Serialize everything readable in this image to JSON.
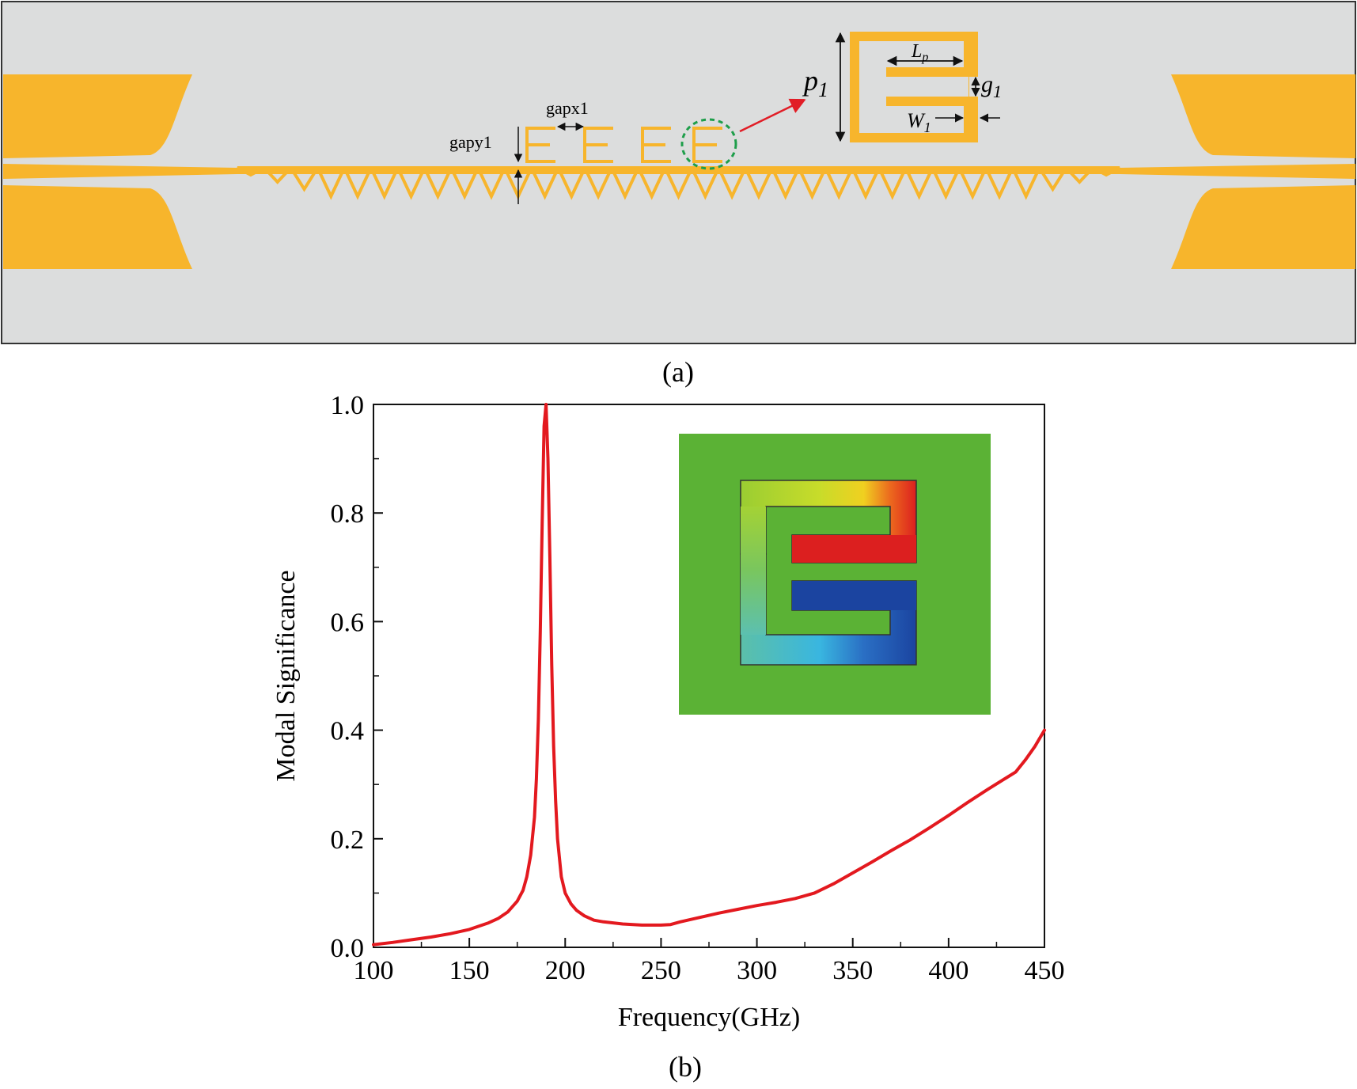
{
  "panel_a": {
    "caption": "(a)",
    "colors": {
      "substrate": "#DCDDDD",
      "metal": "#F7B52C",
      "arrow": "#E11D26",
      "highlight": "#1E9E4A"
    },
    "labels": {
      "gapx": "gapx1",
      "gapy": "gapy1",
      "p": "p",
      "p_sub": "1",
      "lp": "L",
      "lp_sub": "p",
      "g": "g",
      "g_sub": "1",
      "w": "W",
      "w_sub": "1"
    }
  },
  "panel_b": {
    "caption": "(b)",
    "colors": {
      "line": "#E3191F",
      "inset_bg": "#5BB235"
    },
    "inset": {
      "description_icon": "e-shaped-resonator-current-map"
    }
  },
  "chart_data": {
    "type": "line",
    "title": "",
    "xlabel": "Frequency(GHz)",
    "ylabel": "Modal Significance",
    "xlim": [
      100,
      450
    ],
    "ylim": [
      0,
      1.0
    ],
    "xticks": [
      100,
      150,
      200,
      250,
      300,
      350,
      400,
      450
    ],
    "xtick_labels": [
      "100",
      "150",
      "200",
      "250",
      "300",
      "350",
      "400",
      "450"
    ],
    "yticks": [
      0.0,
      0.2,
      0.4,
      0.6,
      0.8,
      1.0
    ],
    "ytick_labels": [
      "0.0",
      "0.2",
      "0.4",
      "0.6",
      "0.8",
      "1.0"
    ],
    "grid": false,
    "series": [
      {
        "color": "#E3191F",
        "x": [
          100,
          110,
          120,
          130,
          140,
          150,
          160,
          165,
          170,
          175,
          178,
          180,
          182,
          184,
          185,
          186,
          187,
          188,
          189,
          190,
          191,
          192,
          193,
          194,
          195,
          196,
          198,
          200,
          203,
          206,
          210,
          215,
          220,
          230,
          240,
          250,
          255,
          260,
          270,
          280,
          290,
          300,
          310,
          320,
          330,
          340,
          350,
          360,
          370,
          380,
          390,
          400,
          410,
          420,
          430,
          435,
          440,
          445,
          450
        ],
        "y": [
          0.005,
          0.009,
          0.014,
          0.019,
          0.025,
          0.033,
          0.045,
          0.053,
          0.065,
          0.085,
          0.105,
          0.13,
          0.17,
          0.24,
          0.31,
          0.42,
          0.58,
          0.78,
          0.96,
          1.0,
          0.9,
          0.72,
          0.52,
          0.37,
          0.27,
          0.2,
          0.13,
          0.1,
          0.08,
          0.068,
          0.058,
          0.05,
          0.047,
          0.043,
          0.041,
          0.041,
          0.042,
          0.047,
          0.055,
          0.063,
          0.07,
          0.077,
          0.083,
          0.09,
          0.1,
          0.117,
          0.137,
          0.157,
          0.178,
          0.198,
          0.22,
          0.243,
          0.267,
          0.29,
          0.312,
          0.323,
          0.345,
          0.37,
          0.4
        ]
      }
    ]
  }
}
